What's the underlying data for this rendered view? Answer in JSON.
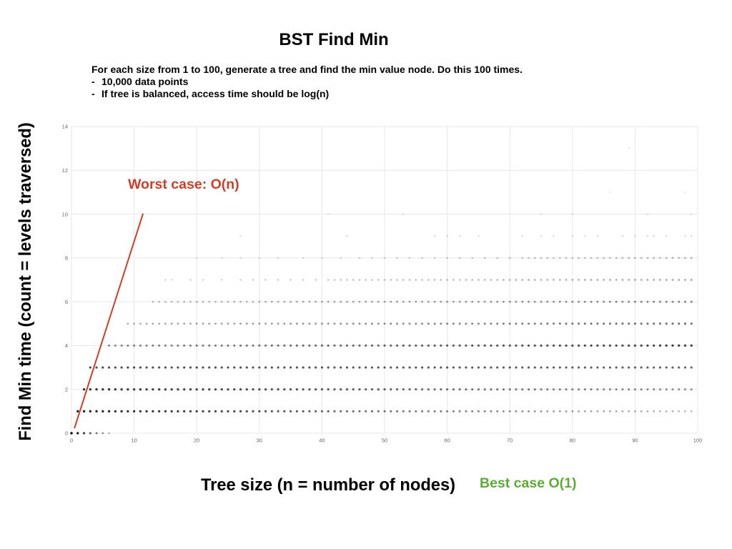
{
  "chart_data": {
    "type": "scatter",
    "title": "BST Find Min",
    "xlabel": "Tree size (n = number of nodes)",
    "ylabel": "Find Min time (count = levels traversed)",
    "xlim": [
      0,
      100
    ],
    "ylim": [
      0,
      14
    ],
    "x_ticks": [
      0,
      10,
      20,
      30,
      40,
      50,
      60,
      70,
      80,
      90,
      100
    ],
    "y_ticks": [
      0,
      2,
      4,
      6,
      8,
      10,
      12,
      14
    ],
    "grid": true,
    "grid_color": "#e8e8e8",
    "tick_label_color": "#666666",
    "point_color": "#000000",
    "rows": [
      {
        "y": 0,
        "x_range": [
          0,
          6
        ],
        "density": [
          0.95,
          0.3
        ]
      },
      {
        "y": 1,
        "x_range": [
          1,
          99
        ],
        "density": [
          0.85,
          0.3
        ]
      },
      {
        "y": 2,
        "x_range": [
          2,
          99
        ],
        "density": [
          0.8,
          0.45
        ]
      },
      {
        "y": 3,
        "x_range": [
          3,
          99
        ],
        "density": [
          0.7,
          0.62
        ]
      },
      {
        "y": 4,
        "x_range": [
          6,
          99
        ],
        "density": [
          0.5,
          0.75
        ]
      },
      {
        "y": 5,
        "x_range": [
          9,
          99
        ],
        "density": [
          0.35,
          0.6
        ]
      },
      {
        "y": 6,
        "x_range": [
          13,
          99
        ],
        "density": [
          0.28,
          0.5
        ]
      },
      {
        "y": 7,
        "x": [
          15,
          16,
          19,
          21,
          24,
          27,
          29,
          31,
          33,
          35,
          37,
          39
        ],
        "x_range": [
          41,
          99
        ],
        "density": [
          0.18,
          0.38
        ]
      },
      {
        "y": 8,
        "x": [
          20,
          24,
          27,
          30,
          33,
          37,
          40,
          43,
          46,
          48,
          50,
          52,
          54,
          56,
          58,
          60,
          62,
          64,
          66,
          68,
          70
        ],
        "x_range": [
          72,
          99
        ],
        "density": [
          0.15,
          0.3
        ]
      },
      {
        "y": 9,
        "x": [
          27,
          44,
          58,
          60,
          62,
          65,
          72,
          75,
          77,
          80,
          82,
          84,
          88,
          90,
          92,
          93,
          95,
          98,
          99
        ],
        "density": 0.16
      },
      {
        "y": 10,
        "x": [
          41,
          53,
          75,
          80,
          92,
          99
        ],
        "density": 0.12
      },
      {
        "y": 11,
        "x": [
          86,
          98
        ],
        "density": 0.1
      },
      {
        "y": 13,
        "x": [
          89
        ],
        "density": 0.12
      }
    ],
    "worst_case_line": {
      "color": "#cf3e28",
      "from": [
        0.5,
        0.25
      ],
      "to": [
        11.4,
        10
      ]
    },
    "worst_case_label": {
      "text": "Worst case: O(n)",
      "color": "#cf3e28"
    },
    "best_case_label": {
      "text": "Best case O(1)",
      "color": "#5bac34"
    }
  },
  "slide": {
    "description": "For each size from 1 to 100, generate a tree and find the min value node. Do this 100 times.",
    "bullet_marker": "-",
    "bullets": [
      "10,000 data points",
      "If tree is balanced, access time should be log(n)"
    ]
  }
}
